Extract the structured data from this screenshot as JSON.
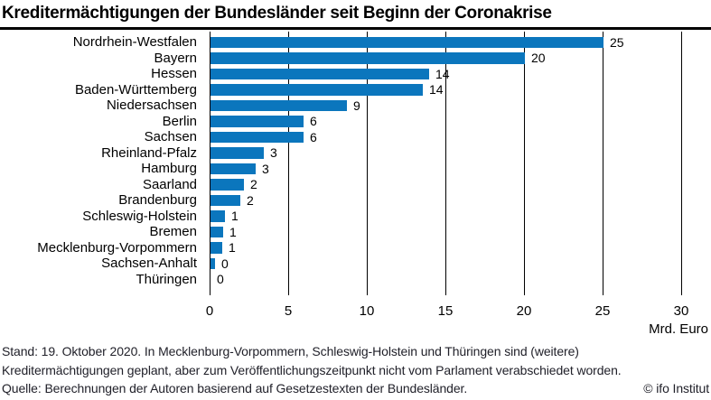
{
  "title": "Kreditermächtigungen der Bundesländer seit Beginn der Coronakrise",
  "chart_data": {
    "type": "bar",
    "orientation": "horizontal",
    "title": "Kreditermächtigungen der Bundesländer seit Beginn der Coronakrise",
    "categories": [
      "Nordrhein-Westfalen",
      "Bayern",
      "Hessen",
      "Baden-Württemberg",
      "Niedersachsen",
      "Berlin",
      "Sachsen",
      "Rheinland-Pfalz",
      "Hamburg",
      "Saarland",
      "Brandenburg",
      "Schleswig-Holstein",
      "Bremen",
      "Mecklenburg-Vorpommern",
      "Sachsen-Anhalt",
      "Thüringen"
    ],
    "values": [
      25,
      20,
      14,
      14,
      9,
      6,
      6,
      3,
      3,
      2,
      2,
      1,
      1,
      1,
      0,
      0
    ],
    "value_labels": [
      "25",
      "20",
      "14",
      "14",
      "9",
      "6",
      "6",
      "3",
      "3",
      "2",
      "2",
      "1",
      "1",
      "1",
      "0",
      "0"
    ],
    "bar_values_exact": [
      25,
      20,
      13.9,
      13.5,
      8.7,
      5.9,
      5.9,
      3.4,
      2.9,
      2.1,
      1.9,
      0.9,
      0.8,
      0.75,
      0.3,
      0
    ],
    "xlabel": "Mrd. Euro",
    "xlim": [
      0,
      30
    ],
    "xticks": [
      0,
      5,
      10,
      15,
      20,
      25,
      30
    ],
    "grid": true,
    "bar_color": "#0b76bd"
  },
  "footer": {
    "line1": "Stand: 19. Oktober 2020. In Mecklenburg-Vorpommern, Schleswig-Holstein und Thüringen sind (weitere)",
    "line2": "Kreditermächtigungen geplant, aber zum Veröffentlichungszeitpunkt nicht vom Parlament verabschiedet worden.",
    "line3": "Quelle: Berechnungen der Autoren basierend auf Gesetzestexten der Bundesländer.",
    "copyright": "© ifo Institut"
  }
}
